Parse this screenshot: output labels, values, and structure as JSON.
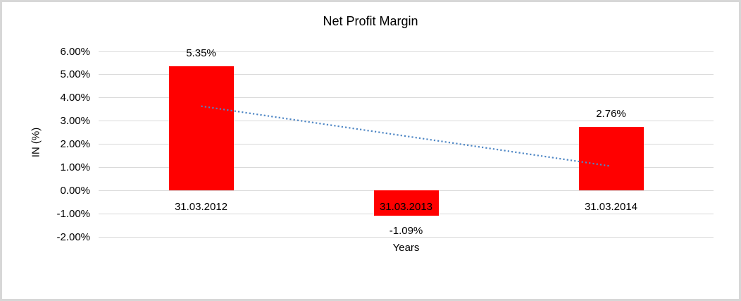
{
  "chart_data": {
    "type": "bar",
    "title": "Net Profit Margin",
    "xlabel": "Years",
    "ylabel": "IN (%)",
    "categories": [
      "31.03.2012",
      "31.03.2013",
      "31.03.2014"
    ],
    "values": [
      5.35,
      -1.09,
      2.76
    ],
    "data_labels": [
      "5.35%",
      "-1.09%",
      "2.76%"
    ],
    "y_tick_labels": [
      "6.00%",
      "5.00%",
      "4.00%",
      "3.00%",
      "2.00%",
      "1.00%",
      "0.00%",
      "-1.00%",
      "-2.00%"
    ],
    "y_tick_values": [
      6,
      5,
      4,
      3,
      2,
      1,
      0,
      -1,
      -2
    ],
    "ylim": [
      -2,
      6
    ],
    "grid": "horizontal-on",
    "legend": "none",
    "trendline": {
      "type": "linear",
      "style": "dotted",
      "start_value": 3.64,
      "end_value": 1.05
    },
    "colors": {
      "bar": "#ff0000",
      "trendline": "#4f87c5",
      "gridline": "#d9d9d9",
      "text": "#000000",
      "frame_border": "#d7d7d7",
      "background": "#ffffff"
    }
  }
}
